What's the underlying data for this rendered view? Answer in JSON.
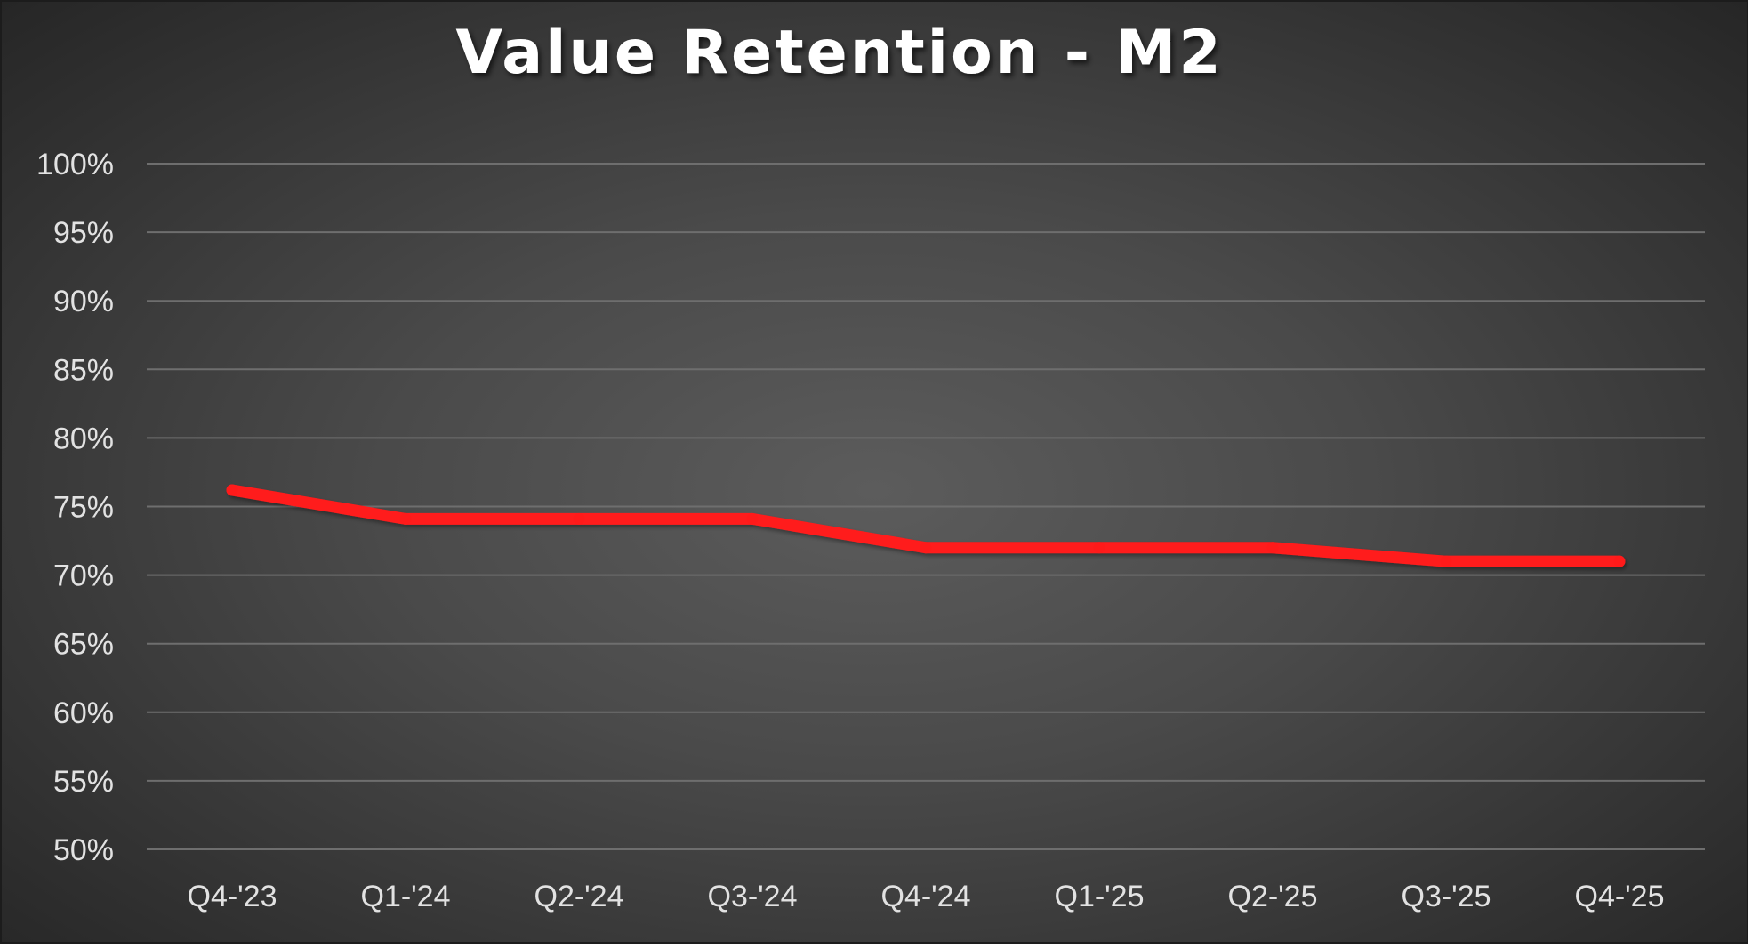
{
  "chart_data": {
    "type": "line",
    "title": "Value Retention - M2",
    "xlabel": "",
    "ylabel": "",
    "categories": [
      "Q4-'23",
      "Q1-'24",
      "Q2-'24",
      "Q3-'24",
      "Q4-'24",
      "Q1-'25",
      "Q2-'25",
      "Q3-'25",
      "Q4-'25"
    ],
    "series": [
      {
        "values": [
          76.2,
          74.1,
          74.1,
          74.1,
          72.0,
          72.0,
          72.0,
          71.0,
          71.0
        ],
        "color": "#ff1a1a"
      }
    ],
    "ylim": [
      50,
      100
    ],
    "y_ticks": [
      50,
      55,
      60,
      65,
      70,
      75,
      80,
      85,
      90,
      95,
      100
    ],
    "y_tick_format": "percent",
    "grid": true,
    "legend": "none"
  },
  "colors": {
    "background": "#4a4a4a",
    "gridline": "#6e6e6e",
    "text": "#e2e2e2",
    "title": "#ffffff",
    "line": "#ff1a1a"
  }
}
